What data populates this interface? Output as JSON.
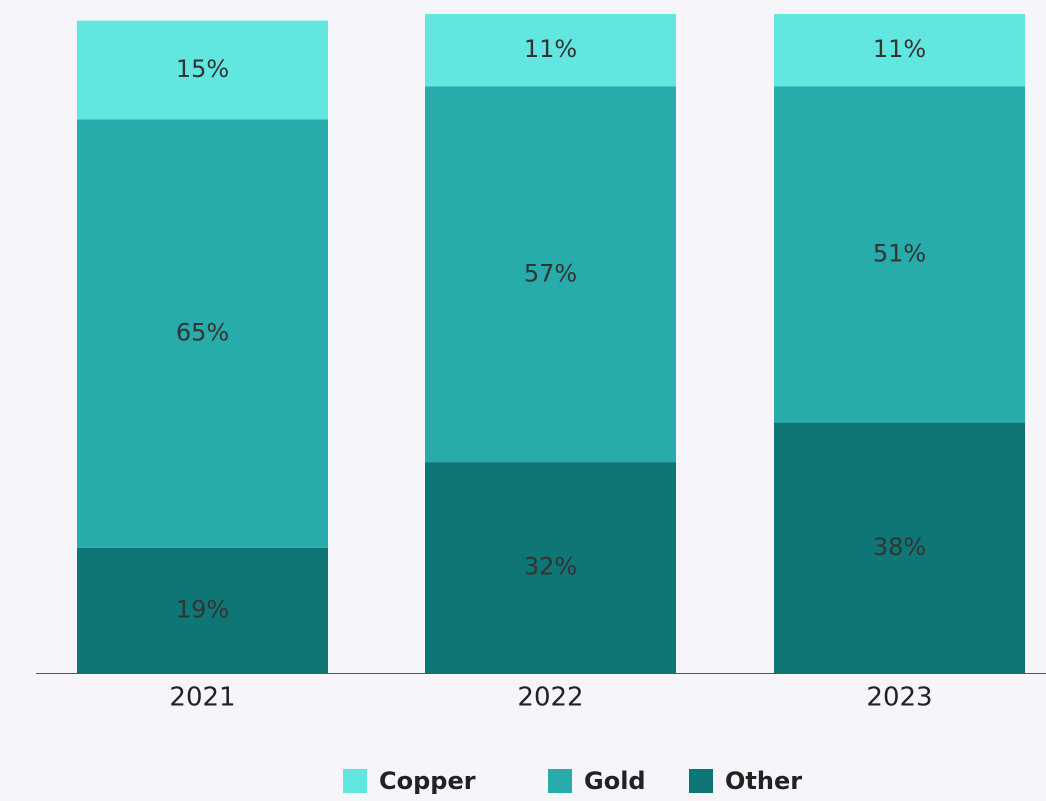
{
  "chart_data": {
    "type": "stacked_bar",
    "categories": [
      "2021",
      "2022",
      "2023"
    ],
    "series": [
      {
        "name": "Copper",
        "color": "#62e6e0",
        "values": [
          15,
          11,
          11
        ],
        "value_labels": [
          "15%",
          "11%",
          "11%"
        ]
      },
      {
        "name": "Gold",
        "color": "#28abab",
        "values": [
          65,
          57,
          51
        ],
        "value_labels": [
          "65%",
          "57%",
          "51%"
        ]
      },
      {
        "name": "Other",
        "color": "#0e7675",
        "values": [
          19,
          32,
          38
        ],
        "value_labels": [
          "19%",
          "32%",
          "38%"
        ]
      }
    ]
  }
}
